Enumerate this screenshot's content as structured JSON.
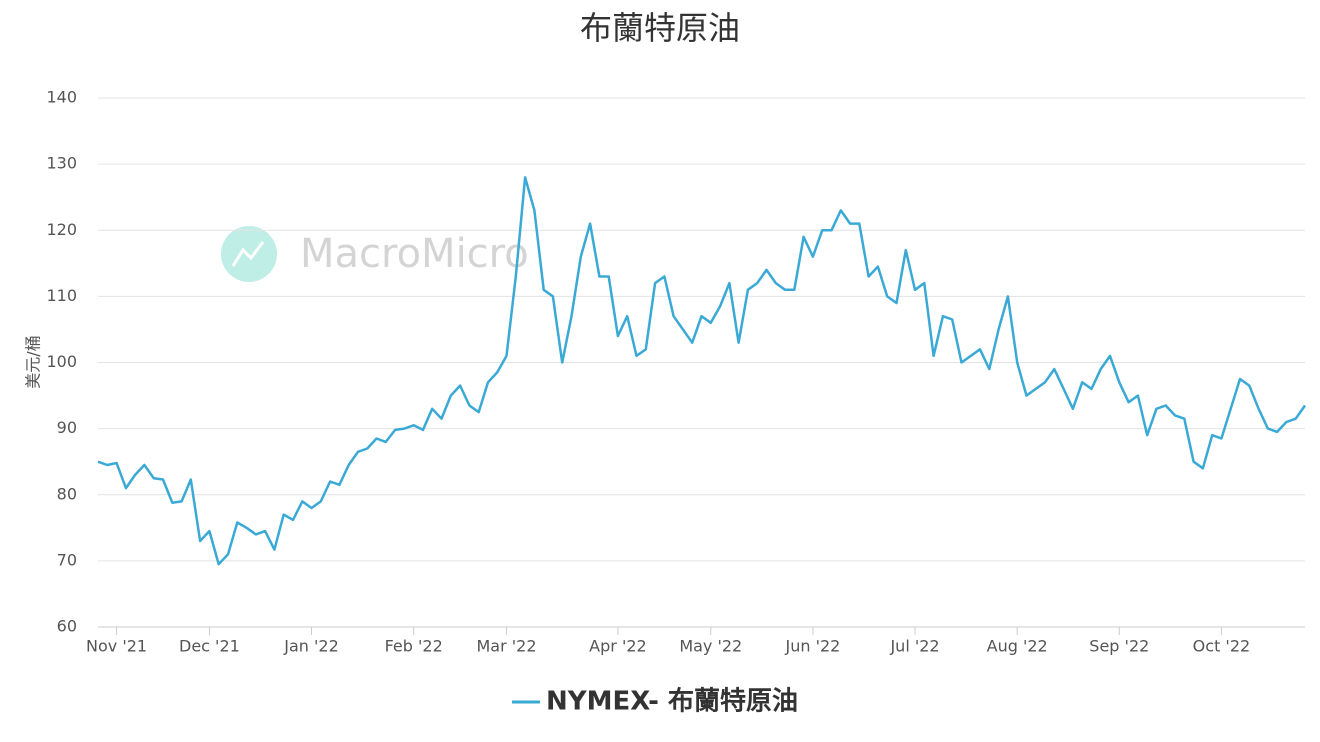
{
  "chart_data": {
    "type": "line",
    "title": "布蘭特原油",
    "watermark": "MacroMicro",
    "y_label": "美元/桶",
    "categories": [
      null,
      null,
      "Nov '21",
      null,
      null,
      null,
      null,
      null,
      null,
      null,
      null,
      null,
      "Dec '21",
      null,
      null,
      null,
      null,
      null,
      null,
      null,
      null,
      null,
      null,
      "Jan '22",
      null,
      null,
      null,
      null,
      null,
      null,
      null,
      null,
      null,
      null,
      "Feb '22",
      null,
      null,
      null,
      null,
      null,
      null,
      null,
      null,
      null,
      "Mar '22",
      null,
      null,
      null,
      null,
      null,
      null,
      null,
      null,
      null,
      null,
      null,
      "Apr '22",
      null,
      null,
      null,
      null,
      null,
      null,
      null,
      null,
      null,
      "May '22",
      null,
      null,
      null,
      null,
      null,
      null,
      null,
      null,
      null,
      null,
      "Jun '22",
      null,
      null,
      null,
      null,
      null,
      null,
      null,
      null,
      null,
      null,
      "Jul '22",
      null,
      null,
      null,
      null,
      null,
      null,
      null,
      null,
      null,
      null,
      "Aug '22",
      null,
      null,
      null,
      null,
      null,
      null,
      null,
      null,
      null,
      null,
      "Sep '22",
      null,
      null,
      null,
      null,
      null,
      null,
      null,
      null,
      null,
      null,
      "Oct '22",
      null,
      null,
      null,
      null,
      null,
      null,
      null,
      null,
      null
    ],
    "series": [
      {
        "name": "NYMEX- 布蘭特原油",
        "color": "#3aa9d6",
        "values": [
          85,
          84.5,
          84.8,
          81,
          83,
          84.5,
          82.5,
          82.3,
          78.8,
          79,
          82.3,
          73,
          74.5,
          69.5,
          71,
          75.8,
          75,
          74,
          74.5,
          71.7,
          77,
          76.2,
          79,
          78,
          79,
          82,
          81.5,
          84.5,
          86.5,
          87,
          88.5,
          88,
          89.8,
          90,
          90.5,
          89.8,
          93,
          91.5,
          95,
          96.5,
          93.5,
          92.5,
          97,
          98.5,
          101,
          113,
          128,
          123,
          111,
          110,
          100,
          107,
          116,
          121,
          113,
          113,
          104,
          107,
          101,
          102,
          112,
          113,
          107,
          105,
          103,
          107,
          106,
          108.5,
          112,
          103,
          111,
          112,
          114,
          112,
          111,
          111,
          119,
          116,
          120,
          120,
          123,
          121,
          121,
          113,
          114.5,
          110,
          109,
          117,
          111,
          112,
          101,
          107,
          106.5,
          100,
          101,
          102,
          99,
          105,
          110,
          100,
          95,
          96,
          97,
          99,
          96,
          93,
          97,
          96,
          99,
          101,
          97,
          94,
          95,
          89,
          93,
          93.5,
          92,
          91.5,
          85,
          84,
          89,
          88.5,
          93,
          97.5,
          96.5,
          93,
          90,
          89.5,
          91,
          91.5,
          93.5
        ]
      }
    ],
    "ylim": [
      60,
      140
    ],
    "yticks": [
      60,
      70,
      80,
      90,
      100,
      110,
      120,
      130,
      140
    ],
    "grid": true
  }
}
